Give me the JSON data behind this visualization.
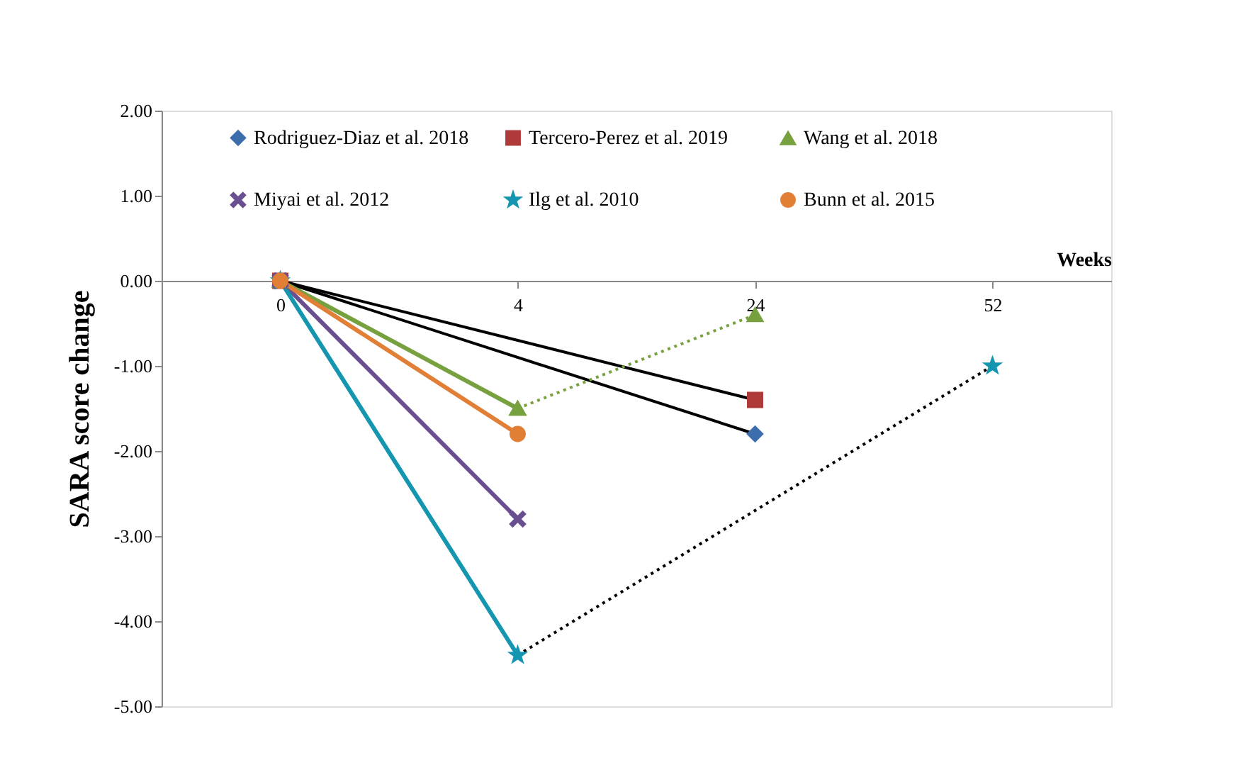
{
  "chart_data": {
    "type": "line",
    "xlabel": "Weeks",
    "ylabel": "SARA score change",
    "categories": [
      "0",
      "4",
      "24",
      "52"
    ],
    "ylim": [
      -5,
      2
    ],
    "yticks": [
      {
        "value": -5,
        "label": "-5.00"
      },
      {
        "value": -4,
        "label": "-4.00"
      },
      {
        "value": -3,
        "label": "-3.00"
      },
      {
        "value": -2,
        "label": "-2.00"
      },
      {
        "value": -1,
        "label": "-1.00"
      },
      {
        "value": 0,
        "label": "0.00"
      },
      {
        "value": 1,
        "label": "1.00"
      },
      {
        "value": 2,
        "label": "2.00"
      }
    ],
    "grid": false,
    "legend": "top",
    "series": [
      {
        "name": "Rodriguez-Diaz et al. 2018",
        "type": "scatter",
        "color": "#3d6eac",
        "marker": "diamond",
        "values": [
          null,
          null,
          -1.8,
          null
        ]
      },
      {
        "name": "Tercero-Perez et al. 2019",
        "type": "scatter",
        "color": "#b03a3a",
        "marker": "square",
        "values": [
          0,
          null,
          -1.4,
          null
        ]
      },
      {
        "name": "Wang et al. 2018",
        "type": "line",
        "color": "#77a03f",
        "marker": "triangle",
        "line_style": "solid",
        "values": [
          0,
          -1.5,
          null,
          null
        ]
      },
      {
        "name": "Miyai et al. 2012",
        "type": "line",
        "color": "#6a4f90",
        "marker": "cross",
        "line_style": "solid",
        "values": [
          0,
          -2.8,
          null,
          null
        ]
      },
      {
        "name": "Ilg et al. 2010",
        "type": "line",
        "color": "#1596b0",
        "marker": "star",
        "line_style": "solid",
        "values": [
          0,
          -4.4,
          null,
          null
        ]
      },
      {
        "name": "Bunn et al. 2015",
        "type": "line",
        "color": "#e07f35",
        "marker": "circle",
        "line_style": "solid",
        "values": [
          0,
          -1.8,
          null,
          null
        ]
      },
      {
        "values": [
          0,
          null,
          -1.8,
          null
        ],
        "color": "#000000",
        "marker": "none",
        "line_style": "solid"
      },
      {
        "values": [
          0,
          null,
          -1.4,
          null
        ],
        "color": "#000000",
        "marker": "none",
        "line_style": "solid"
      },
      {
        "values": [
          null,
          -1.5,
          -0.4,
          null
        ],
        "color": "#77a03f",
        "marker": "triangle",
        "line_style": "dotted"
      },
      {
        "values": [
          null,
          -4.4,
          null,
          -1.0
        ],
        "color": "#000000",
        "marker": "none",
        "line_style": "dotted"
      },
      {
        "type": "scatter",
        "color": "#1596b0",
        "marker": "star",
        "values": [
          null,
          null,
          null,
          -1.0
        ]
      }
    ]
  }
}
